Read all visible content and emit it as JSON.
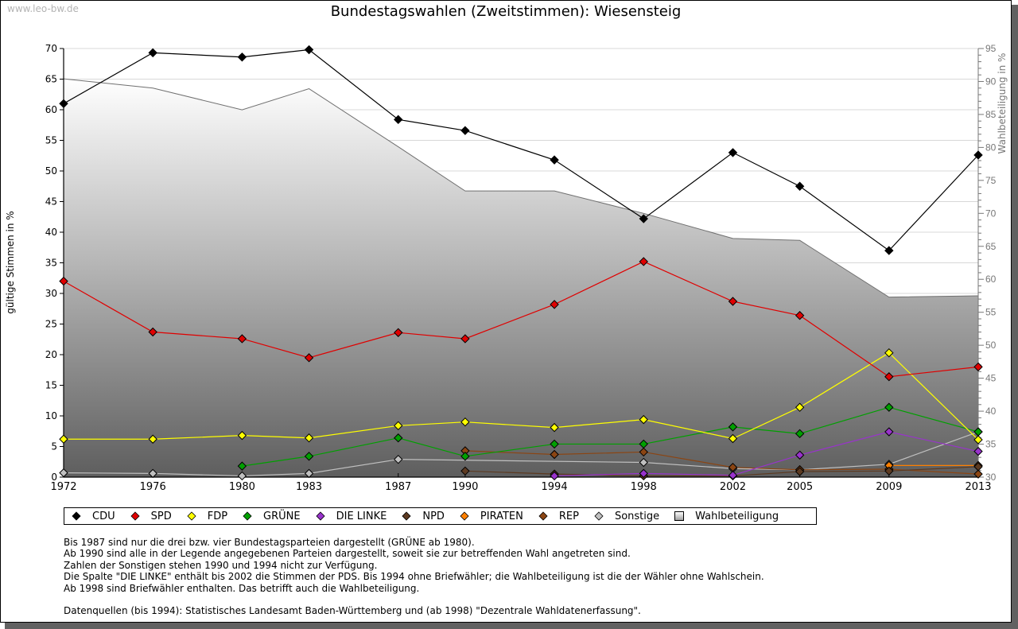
{
  "watermark": "www.leo-bw.de",
  "chart_data": {
    "type": "line",
    "title": "Bundestagswahlen (Zweitstimmen): Wiesensteig",
    "ylabel": "gültige Stimmen in %",
    "y2label": "Wahlbeteiligung in %",
    "xlabel": "",
    "categories": [
      "1972",
      "1976",
      "1980",
      "1983",
      "1987",
      "1990",
      "1994",
      "1998",
      "2002",
      "2005",
      "2009",
      "2013"
    ],
    "x_years": [
      1972,
      1976,
      1980,
      1983,
      1987,
      1990,
      1994,
      1998,
      2002,
      2005,
      2009,
      2013
    ],
    "ylim": [
      0,
      70
    ],
    "y2lim": [
      30,
      95
    ],
    "yticks": [
      "0",
      "5",
      "10",
      "15",
      "20",
      "25",
      "30",
      "35",
      "40",
      "45",
      "50",
      "55",
      "60",
      "65",
      "70"
    ],
    "y2ticks": [
      "30",
      "35",
      "40",
      "45",
      "50",
      "55",
      "60",
      "65",
      "70",
      "75",
      "80",
      "85",
      "90",
      "95"
    ],
    "grid": true,
    "legend_position": "bottom",
    "series": [
      {
        "name": "CDU",
        "color": "#000000",
        "values": [
          61.0,
          69.3,
          68.6,
          69.8,
          58.4,
          56.6,
          51.8,
          42.2,
          53.0,
          47.5,
          37.0,
          52.6
        ]
      },
      {
        "name": "SPD",
        "color": "#e00000",
        "values": [
          32.0,
          23.7,
          22.6,
          19.5,
          23.6,
          22.6,
          28.2,
          35.2,
          28.7,
          26.4,
          16.4,
          18.0
        ]
      },
      {
        "name": "FDP",
        "color": "#ffff00",
        "values": [
          6.2,
          6.2,
          6.8,
          6.4,
          8.4,
          9.0,
          8.1,
          9.4,
          6.3,
          11.4,
          20.3,
          6.1
        ]
      },
      {
        "name": "GRÜNE",
        "color": "#00a000",
        "values": [
          null,
          null,
          1.8,
          3.4,
          6.4,
          3.4,
          5.4,
          5.4,
          8.2,
          7.1,
          11.4,
          7.4
        ]
      },
      {
        "name": "DIE LINKE",
        "color": "#9933cc",
        "values": [
          null,
          null,
          null,
          null,
          null,
          null,
          0.2,
          0.6,
          0.3,
          3.6,
          7.4,
          4.2
        ]
      },
      {
        "name": "NPD",
        "color": "#5c3a21",
        "values": [
          null,
          null,
          null,
          null,
          null,
          1.0,
          0.5,
          0.2,
          0.2,
          0.9,
          1.0,
          1.7
        ]
      },
      {
        "name": "PIRATEN",
        "color": "#ff8000",
        "values": [
          null,
          null,
          null,
          null,
          null,
          null,
          null,
          null,
          null,
          null,
          1.9,
          1.9
        ]
      },
      {
        "name": "REP",
        "color": "#8b4513",
        "values": [
          null,
          null,
          null,
          null,
          null,
          4.3,
          3.7,
          4.1,
          1.6,
          1.2,
          1.3,
          0.5
        ]
      },
      {
        "name": "Sonstige",
        "color": "#c0c0c0",
        "values": [
          0.7,
          0.6,
          0.2,
          0.6,
          2.9,
          null,
          null,
          2.4,
          1.4,
          1.2,
          2.1,
          7.4
        ]
      }
    ],
    "turnout": {
      "name": "Wahlbeteiligung",
      "axis": "right",
      "values": [
        90.4,
        89.0,
        85.7,
        88.9,
        80.1,
        73.4,
        73.4,
        70.0,
        66.2,
        65.9,
        57.3,
        57.5
      ]
    }
  },
  "legend": [
    {
      "label": "CDU",
      "color": "#000000",
      "shape": "diamond"
    },
    {
      "label": "SPD",
      "color": "#e00000",
      "shape": "diamond"
    },
    {
      "label": "FDP",
      "color": "#ffff00",
      "shape": "diamond"
    },
    {
      "label": "GRÜNE",
      "color": "#00a000",
      "shape": "diamond"
    },
    {
      "label": "DIE LINKE",
      "color": "#9933cc",
      "shape": "diamond"
    },
    {
      "label": "NPD",
      "color": "#5c3a21",
      "shape": "diamond"
    },
    {
      "label": "PIRATEN",
      "color": "#ff8000",
      "shape": "diamond"
    },
    {
      "label": "REP",
      "color": "#8b4513",
      "shape": "diamond"
    },
    {
      "label": "Sonstige",
      "color": "#c0c0c0",
      "shape": "diamond"
    },
    {
      "label": "Wahlbeteiligung",
      "color": "#a0a0a0",
      "shape": "square"
    }
  ],
  "notes": [
    "Bis 1987 sind nur die drei bzw. vier Bundestagsparteien dargestellt (GRÜNE ab 1980).",
    "Ab 1990 sind alle in der Legende angegebenen Parteien dargestellt, soweit sie zur betreffenden Wahl angetreten sind.",
    "Zahlen der Sonstigen stehen 1990 und 1994 nicht zur Verfügung.",
    "Die Spalte \"DIE LINKE\" enthält bis 2002 die Stimmen der PDS. Bis 1994 ohne Briefwähler; die Wahlbeteiligung ist die der Wähler ohne Wahlschein.",
    "Ab 1998 sind Briefwähler enthalten. Das betrifft auch die Wahlbeteiligung.",
    "",
    "Datenquellen (bis 1994): Statistisches Landesamt Baden-Württemberg und (ab 1998) \"Dezentrale Wahldatenerfassung\"."
  ]
}
